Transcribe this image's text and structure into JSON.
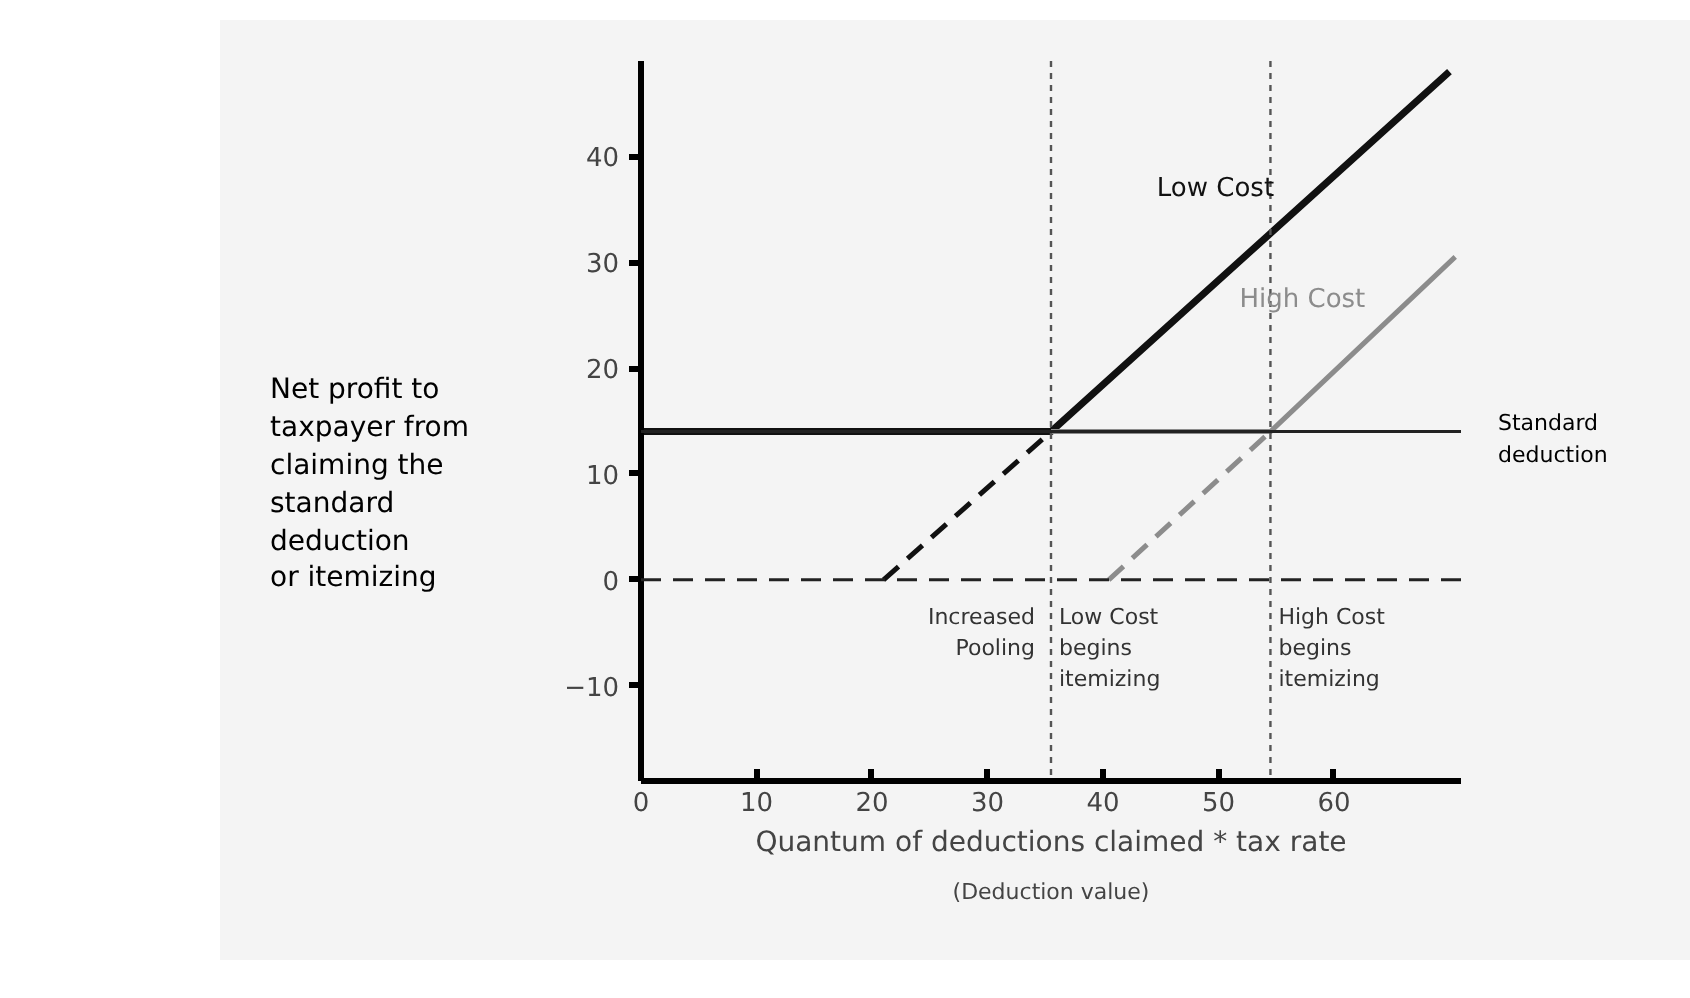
{
  "chart_data": {
    "type": "line",
    "xlabel": "Quantum of deductions claimed * tax rate",
    "ylabel": "Net profit to taxpayer from claiming the standard deduction or itemizing",
    "xlim": [
      0,
      71
    ],
    "ylim": [
      -19,
      49
    ],
    "xticks": [
      0,
      10,
      20,
      30,
      40,
      50,
      60
    ],
    "yticks": [
      -10,
      0,
      10,
      20,
      30,
      40
    ],
    "grid": false,
    "marker": "none",
    "series": [
      {
        "name": "Low Cost",
        "color": "#111111",
        "x": [
          0,
          35.5,
          70
        ],
        "values": [
          14,
          14,
          48
        ],
        "line_style": "solid"
      },
      {
        "color": "#111111",
        "x": [
          21,
          35.5
        ],
        "values": [
          0,
          14
        ],
        "line_style": "dashed"
      },
      {
        "name": "High Cost",
        "color": "#8c8c8c",
        "x": [
          35.5,
          54.5,
          70.5
        ],
        "values": [
          14,
          14,
          30.5
        ],
        "line_style": "solid"
      },
      {
        "color": "#8c8c8c",
        "x": [
          40.5,
          54.5
        ],
        "values": [
          0,
          14
        ],
        "line_style": "dashed"
      }
    ],
    "ref_lines": [
      {
        "axis": "y",
        "value": 14,
        "label": "Standard deduction",
        "color": "#222222",
        "line_style": "solid"
      },
      {
        "axis": "y",
        "value": 0,
        "color": "#222222",
        "line_style": "dashed"
      },
      {
        "axis": "x",
        "value": 35.5,
        "color": "#555555",
        "line_style": "dotted"
      },
      {
        "axis": "x",
        "value": 54.5,
        "color": "#555555",
        "line_style": "dotted"
      }
    ],
    "annotations": [
      "Increased Pooling",
      "Low Cost begins itemizing",
      "High Cost begins itemizing",
      "(Deduction value)"
    ]
  }
}
